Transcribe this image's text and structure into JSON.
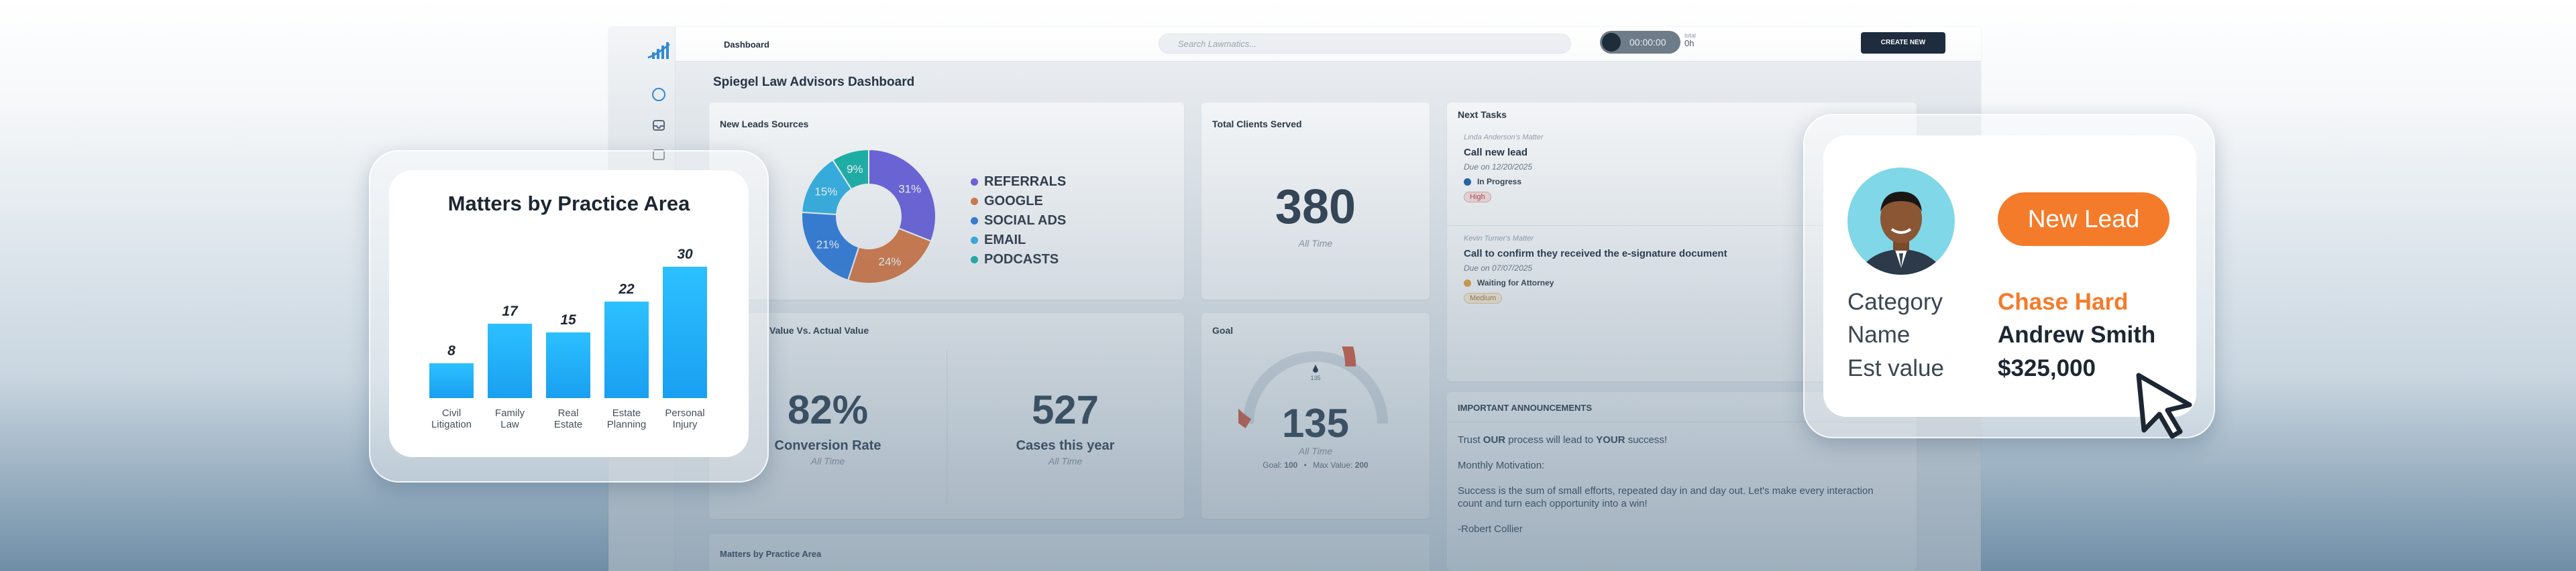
{
  "app": {
    "nav_label": "Dashboard",
    "search_placeholder": "Search Lawmatics...",
    "timer": "00:00:00",
    "timer_total_label": "total",
    "timer_total_value": "0h",
    "create_button": "CREATE NEW",
    "page_title": "Spiegel Law Advisors Dashboard"
  },
  "new_leads": {
    "title": "New Leads Sources",
    "chart_data": {
      "type": "pie",
      "title": "New Leads Sources",
      "labels": [
        "REFERRALS",
        "GOOGLE",
        "SOCIAL ADS",
        "EMAIL",
        "PODCASTS"
      ],
      "values": [
        31,
        24,
        21,
        15,
        9
      ],
      "colors": [
        "#6b5fe0",
        "#e0783e",
        "#2c7be0",
        "#2fb4e8",
        "#14b5a7"
      ],
      "slice_labels": [
        "31%",
        "24%",
        "21%",
        "15%",
        "9%"
      ]
    }
  },
  "total_clients": {
    "title": "Total Clients Served",
    "value": "380",
    "sub": "All Time"
  },
  "value_vs_actual": {
    "title": "Value Vs. Actual Value",
    "conversion_value": "82%",
    "conversion_label": "Conversion Rate",
    "conversion_sub": "All Time",
    "cases_value": "527",
    "cases_label": "Cases this year",
    "cases_sub": "All Time"
  },
  "goal": {
    "title": "Goal",
    "value": "135",
    "sub": "All Time",
    "goal_label": "Goal:",
    "goal_value": "100",
    "max_label": "Max Value:",
    "max_value": "200",
    "gauge_badge": "135"
  },
  "next_tasks": {
    "title": "Next Tasks",
    "items": [
      {
        "matter": "Linda Anderson's Matter",
        "name": "Call new lead",
        "due": "Due on 12/20/2025",
        "status": "In Progress",
        "status_color": "#1d5fa8",
        "priority": "High"
      },
      {
        "matter": "Kevin Turner's Matter",
        "name": "Call to confirm they received the e-signature document",
        "due": "Due on 07/07/2025",
        "status": "Waiting for Attorney",
        "status_color": "#e6a23c",
        "priority": "Medium"
      }
    ]
  },
  "announcements": {
    "title": "IMPORTANT ANNOUNCEMENTS",
    "line1_a": "Trust ",
    "line1_b": "OUR",
    "line1_c": " process will lead to ",
    "line1_d": "YOUR",
    "line1_e": " success!",
    "line2": "Monthly Motivation:",
    "line3": "Success is the sum of small efforts, repeated day in and day out. Let's make every interaction count and turn each opportunity into a win!",
    "line4": "-Robert Collier"
  },
  "matters_bottom_title": "Matters by Practice Area",
  "matters_card": {
    "title": "Matters by Practice Area",
    "chart_data": {
      "type": "bar",
      "title": "Matters by Practice Area",
      "categories": [
        "Civil Litigation",
        "Family Law",
        "Real Estate",
        "Estate Planning",
        "Personal Injury"
      ],
      "category_lines": [
        [
          "Civil",
          "Litigation"
        ],
        [
          "Family",
          "Law"
        ],
        [
          "Real",
          "Estate"
        ],
        [
          "Estate",
          "Planning"
        ],
        [
          "Personal",
          "Injury"
        ]
      ],
      "values": [
        8,
        17,
        15,
        22,
        30
      ],
      "ylim": [
        0,
        30
      ],
      "xlabel": "",
      "ylabel": ""
    }
  },
  "lead_card": {
    "badge": "New Lead",
    "category_label": "Category",
    "category_value": "Chase Hard",
    "name_label": "Name",
    "name_value": "Andrew Smith",
    "value_label": "Est value",
    "value_value": "$325,000",
    "accent": "#f47b2a"
  }
}
